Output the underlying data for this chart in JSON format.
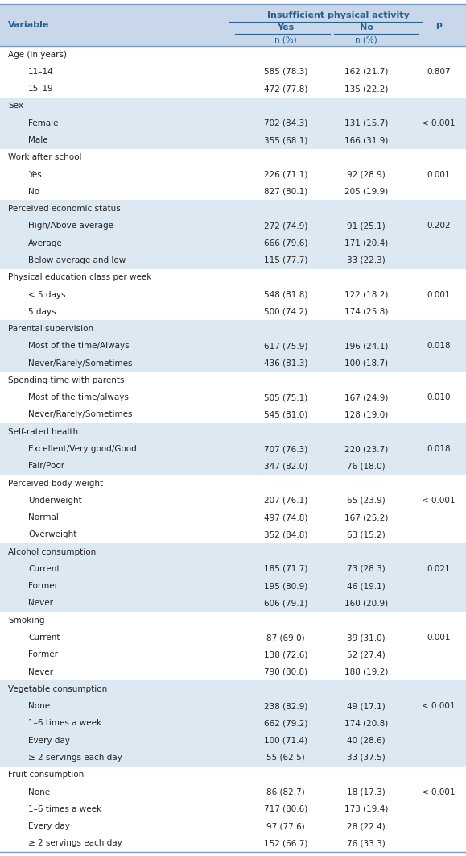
{
  "header_main": "Insufficient physical activity",
  "header_yes": "Yes",
  "header_no": "No",
  "header_p": "p",
  "header_n": "n (%)",
  "col_variable": "Variable",
  "header_bg": "#c8d8ea",
  "alt_row_bg": "#dce8f2",
  "white_bg": "#ffffff",
  "rows": [
    {
      "label": "Age (in years)",
      "indent": 0,
      "yes": "",
      "no": "",
      "p": "",
      "category": true
    },
    {
      "label": "11–14",
      "indent": 1,
      "yes": "585 (78.3)",
      "no": "162 (21.7)",
      "p": "0.807",
      "category": false
    },
    {
      "label": "15–19",
      "indent": 1,
      "yes": "472 (77.8)",
      "no": "135 (22.2)",
      "p": "",
      "category": false
    },
    {
      "label": "Sex",
      "indent": 0,
      "yes": "",
      "no": "",
      "p": "",
      "category": true
    },
    {
      "label": "Female",
      "indent": 1,
      "yes": "702 (84.3)",
      "no": "131 (15.7)",
      "p": "< 0.001",
      "category": false
    },
    {
      "label": "Male",
      "indent": 1,
      "yes": "355 (68.1)",
      "no": "166 (31.9)",
      "p": "",
      "category": false
    },
    {
      "label": "Work after school",
      "indent": 0,
      "yes": "",
      "no": "",
      "p": "",
      "category": true
    },
    {
      "label": "Yes",
      "indent": 1,
      "yes": "226 (71.1)",
      "no": "92 (28.9)",
      "p": "0.001",
      "category": false
    },
    {
      "label": "No",
      "indent": 1,
      "yes": "827 (80.1)",
      "no": "205 (19.9)",
      "p": "",
      "category": false
    },
    {
      "label": "Perceived economic status",
      "indent": 0,
      "yes": "",
      "no": "",
      "p": "",
      "category": true
    },
    {
      "label": "High/Above average",
      "indent": 1,
      "yes": "272 (74.9)",
      "no": "91 (25.1)",
      "p": "0.202",
      "category": false
    },
    {
      "label": "Average",
      "indent": 1,
      "yes": "666 (79.6)",
      "no": "171 (20.4)",
      "p": "",
      "category": false
    },
    {
      "label": "Below average and low",
      "indent": 1,
      "yes": "115 (77.7)",
      "no": "33 (22.3)",
      "p": "",
      "category": false
    },
    {
      "label": "Physical education class per week",
      "indent": 0,
      "yes": "",
      "no": "",
      "p": "",
      "category": true
    },
    {
      "label": "< 5 days",
      "indent": 1,
      "yes": "548 (81.8)",
      "no": "122 (18.2)",
      "p": "0.001",
      "category": false
    },
    {
      "label": "5 days",
      "indent": 1,
      "yes": "500 (74.2)",
      "no": "174 (25.8)",
      "p": "",
      "category": false
    },
    {
      "label": "Parental supervision",
      "indent": 0,
      "yes": "",
      "no": "",
      "p": "",
      "category": true
    },
    {
      "label": "Most of the time/Always",
      "indent": 1,
      "yes": "617 (75.9)",
      "no": "196 (24.1)",
      "p": "0.018",
      "category": false
    },
    {
      "label": "Never/Rarely/Sometimes",
      "indent": 1,
      "yes": "436 (81.3)",
      "no": "100 (18.7)",
      "p": "",
      "category": false
    },
    {
      "label": "Spending time with parents",
      "indent": 0,
      "yes": "",
      "no": "",
      "p": "",
      "category": true
    },
    {
      "label": "Most of the time/always",
      "indent": 1,
      "yes": "505 (75.1)",
      "no": "167 (24.9)",
      "p": "0.010",
      "category": false
    },
    {
      "label": "Never/Rarely/Sometimes",
      "indent": 1,
      "yes": "545 (81.0)",
      "no": "128 (19.0)",
      "p": "",
      "category": false
    },
    {
      "label": "Self-rated health",
      "indent": 0,
      "yes": "",
      "no": "",
      "p": "",
      "category": true
    },
    {
      "label": "Excellent/Very good/Good",
      "indent": 1,
      "yes": "707 (76.3)",
      "no": "220 (23.7)",
      "p": "0.018",
      "category": false
    },
    {
      "label": "Fair/Poor",
      "indent": 1,
      "yes": "347 (82.0)",
      "no": "76 (18.0)",
      "p": "",
      "category": false
    },
    {
      "label": "Perceived body weight",
      "indent": 0,
      "yes": "",
      "no": "",
      "p": "",
      "category": true
    },
    {
      "label": "Underweight",
      "indent": 1,
      "yes": "207 (76.1)",
      "no": "65 (23.9)",
      "p": "< 0.001",
      "category": false
    },
    {
      "label": "Normal",
      "indent": 1,
      "yes": "497 (74.8)",
      "no": "167 (25.2)",
      "p": "",
      "category": false
    },
    {
      "label": "Overweight",
      "indent": 1,
      "yes": "352 (84.8)",
      "no": "63 (15.2)",
      "p": "",
      "category": false
    },
    {
      "label": "Alcohol consumption",
      "indent": 0,
      "yes": "",
      "no": "",
      "p": "",
      "category": true
    },
    {
      "label": "Current",
      "indent": 1,
      "yes": "185 (71.7)",
      "no": "73 (28.3)",
      "p": "0.021",
      "category": false
    },
    {
      "label": "Former",
      "indent": 1,
      "yes": "195 (80.9)",
      "no": "46 (19.1)",
      "p": "",
      "category": false
    },
    {
      "label": "Never",
      "indent": 1,
      "yes": "606 (79.1)",
      "no": "160 (20.9)",
      "p": "",
      "category": false
    },
    {
      "label": "Smoking",
      "indent": 0,
      "yes": "",
      "no": "",
      "p": "",
      "category": true
    },
    {
      "label": "Current",
      "indent": 1,
      "yes": "87 (69.0)",
      "no": "39 (31.0)",
      "p": "0.001",
      "category": false
    },
    {
      "label": "Former",
      "indent": 1,
      "yes": "138 (72.6)",
      "no": "52 (27.4)",
      "p": "",
      "category": false
    },
    {
      "label": "Never",
      "indent": 1,
      "yes": "790 (80.8)",
      "no": "188 (19.2)",
      "p": "",
      "category": false
    },
    {
      "label": "Vegetable consumption",
      "indent": 0,
      "yes": "",
      "no": "",
      "p": "",
      "category": true
    },
    {
      "label": "None",
      "indent": 1,
      "yes": "238 (82.9)",
      "no": "49 (17.1)",
      "p": "< 0.001",
      "category": false
    },
    {
      "label": "1–6 times a week",
      "indent": 1,
      "yes": "662 (79.2)",
      "no": "174 (20.8)",
      "p": "",
      "category": false
    },
    {
      "label": "Every day",
      "indent": 1,
      "yes": "100 (71.4)",
      "no": "40 (28.6)",
      "p": "",
      "category": false
    },
    {
      "≥ 2 servings each day": true,
      "label": "≥ 2 servings each day",
      "indent": 1,
      "yes": "55 (62.5)",
      "no": "33 (37.5)",
      "p": "",
      "category": false
    },
    {
      "label": "Fruit consumption",
      "indent": 0,
      "yes": "",
      "no": "",
      "p": "",
      "category": true
    },
    {
      "label": "None",
      "indent": 1,
      "yes": "86 (82.7)",
      "no": "18 (17.3)",
      "p": "< 0.001",
      "category": false
    },
    {
      "label": "1–6 times a week",
      "indent": 1,
      "yes": "717 (80.6)",
      "no": "173 (19.4)",
      "p": "",
      "category": false
    },
    {
      "label": "Every day",
      "indent": 1,
      "yes": "97 (77.6)",
      "no": "28 (22.4)",
      "p": "",
      "category": false
    },
    {
      "≥ 2 servings each day": true,
      "label": "≥ 2 servings each day",
      "indent": 1,
      "yes": "152 (66.7)",
      "no": "76 (33.3)",
      "p": "",
      "category": false
    }
  ],
  "text_color_header": "#2b5f8e",
  "text_color_data": "#222222",
  "fs_header": 8.0,
  "fs_data": 7.5,
  "line_color": "#7a9cbf",
  "fig_width": 5.79,
  "fig_height": 10.62,
  "dpi": 100
}
